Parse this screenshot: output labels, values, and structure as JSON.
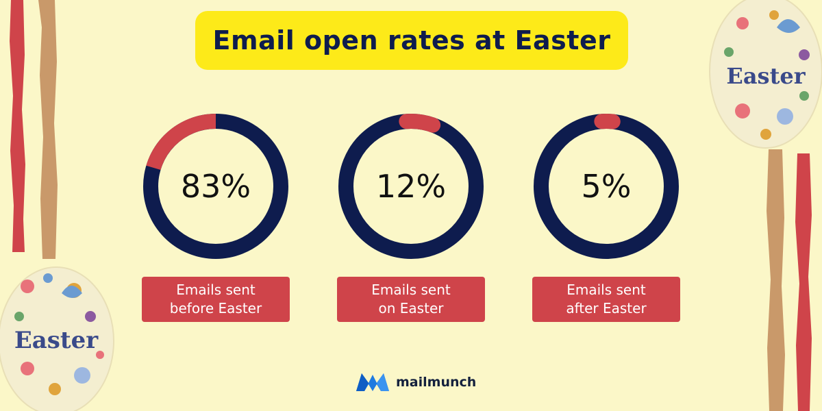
{
  "title": "Email open rates at Easter",
  "colors": {
    "background": "#fbf7c8",
    "title_bg": "#fdea19",
    "title_text": "#0e1c4e",
    "ring_base": "#0e1c4e",
    "ring_highlight": "#cf444a",
    "label_bg": "#cf444a"
  },
  "chart_data": {
    "type": "donut",
    "series": [
      {
        "value": 83,
        "value_label": "83%",
        "label_line1": "Emails sent",
        "label_line2": "before Easter"
      },
      {
        "value": 12,
        "value_label": "12%",
        "label_line1": "Emails sent",
        "label_line2": "on Easter"
      },
      {
        "value": 5,
        "value_label": "5%",
        "label_line1": "Emails sent",
        "label_line2": "after Easter"
      }
    ]
  },
  "decorations": {
    "left_egg_text": "Easter",
    "right_egg_text": "Easter"
  },
  "brand": {
    "name": "mailmunch",
    "logo_icon": "mailmunch-logo-icon"
  }
}
